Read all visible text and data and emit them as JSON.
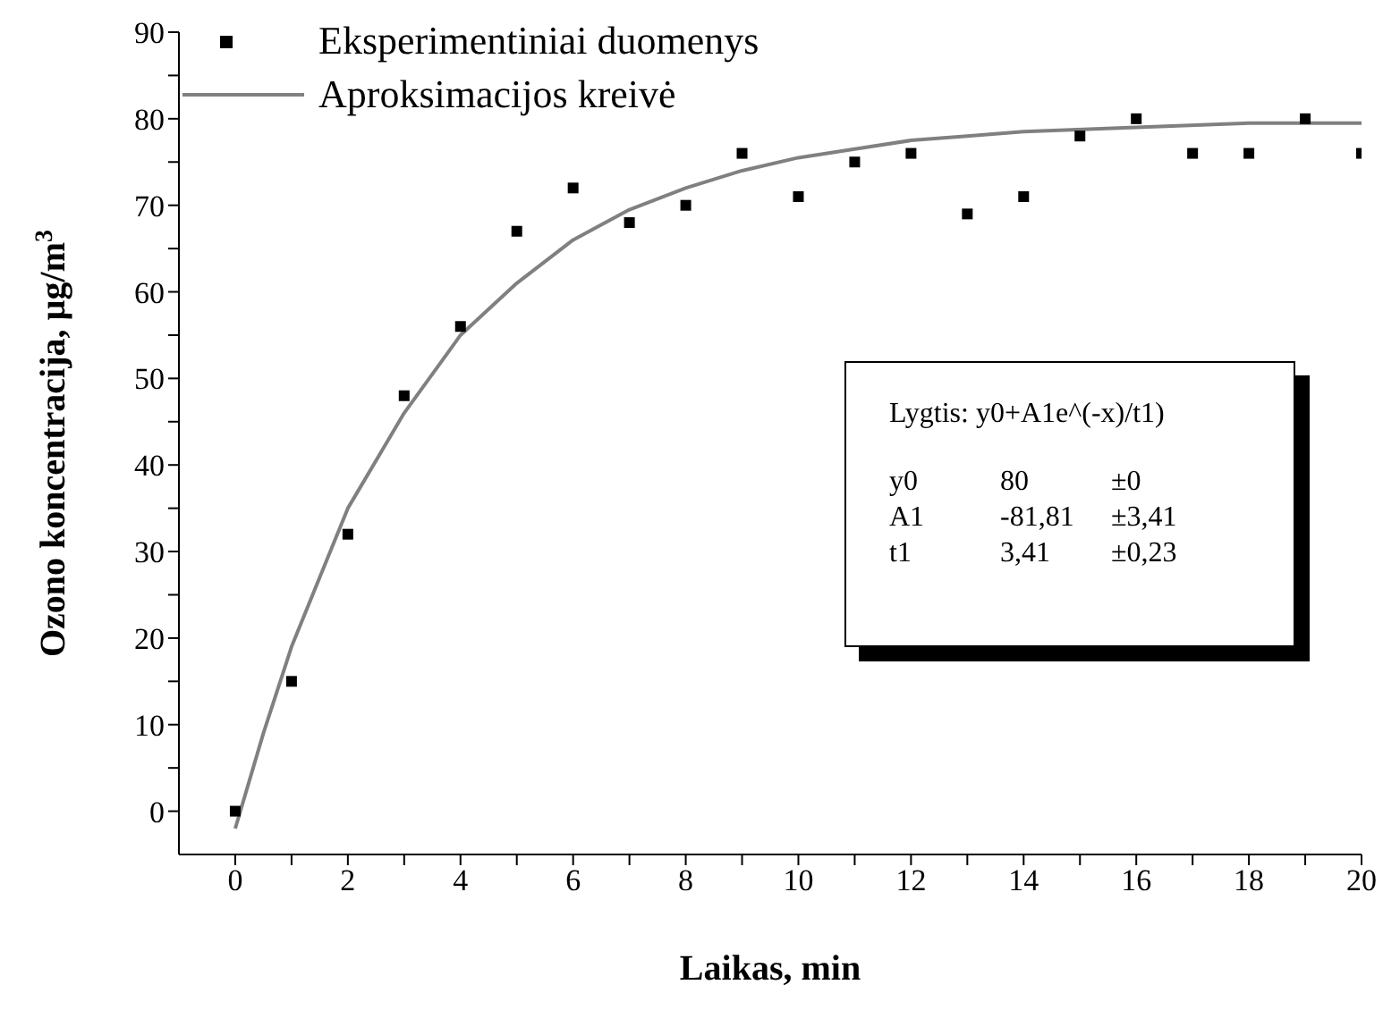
{
  "chart_data": {
    "type": "scatter",
    "xlabel": "Laikas, min",
    "ylabel": "Ozono koncentracija, µg/m$^{3}$",
    "xlim": [
      -1,
      20
    ],
    "ylim": [
      -5,
      90
    ],
    "xticks": [
      0,
      {
        "value": 1,
        "label": null
      },
      2,
      {
        "value": 3,
        "label": null
      },
      4,
      {
        "value": 5,
        "label": null
      },
      6,
      {
        "value": 7,
        "label": null
      },
      8,
      {
        "value": 9,
        "label": null
      },
      10,
      {
        "value": 11,
        "label": null
      },
      12,
      {
        "value": 13,
        "label": null
      },
      14,
      {
        "value": 15,
        "label": null
      },
      16,
      {
        "value": 17,
        "label": null
      },
      18,
      {
        "value": 19,
        "label": null
      },
      20
    ],
    "yticks": [
      0,
      {
        "value": 5,
        "label": null
      },
      10,
      {
        "value": 15,
        "label": null
      },
      20,
      {
        "value": 25,
        "label": null
      },
      30,
      {
        "value": 35,
        "label": null
      },
      40,
      {
        "value": 45,
        "label": null
      },
      50,
      {
        "value": 55,
        "label": null
      },
      60,
      {
        "value": 65,
        "label": null
      },
      70,
      {
        "value": 75,
        "label": null
      },
      80,
      {
        "value": 85,
        "label": null
      },
      90
    ],
    "grid": false,
    "legend": "top left",
    "marker": "square",
    "series": [
      {
        "name": "Eksperimentiniai duomenys",
        "color": "#000000",
        "x": [
          0,
          1,
          2,
          3,
          4,
          5,
          6,
          7,
          8,
          9,
          10,
          11,
          12,
          13,
          14,
          15,
          16,
          17,
          18,
          19,
          20
        ],
        "values": [
          0,
          15,
          32,
          48,
          56,
          67,
          72,
          68,
          70,
          76,
          71,
          75,
          76,
          69,
          71,
          78,
          80,
          76,
          76,
          80,
          76
        ]
      },
      {
        "name": "Aproksimacijos kreivė",
        "type": "line",
        "color": "#808080",
        "marker": "none",
        "line_style": "solid",
        "x": [
          0,
          0.5,
          1,
          1.5,
          2,
          3,
          4,
          5,
          6,
          7,
          8,
          9,
          10,
          11,
          12,
          13,
          14,
          16,
          18,
          20
        ],
        "values": [
          -2,
          9,
          19,
          27,
          35,
          46,
          55,
          61,
          66,
          69.5,
          72,
          74,
          75.5,
          76.5,
          77.5,
          78,
          78.5,
          79,
          79.5,
          79.5
        ]
      }
    ],
    "annotations": [
      "Lygtis: y0+A1e^(-x)/t1)",
      "y0",
      "80",
      "±0",
      "A1",
      "-81,81",
      "±3,41",
      "t1",
      "3,41",
      "±0,23"
    ]
  }
}
